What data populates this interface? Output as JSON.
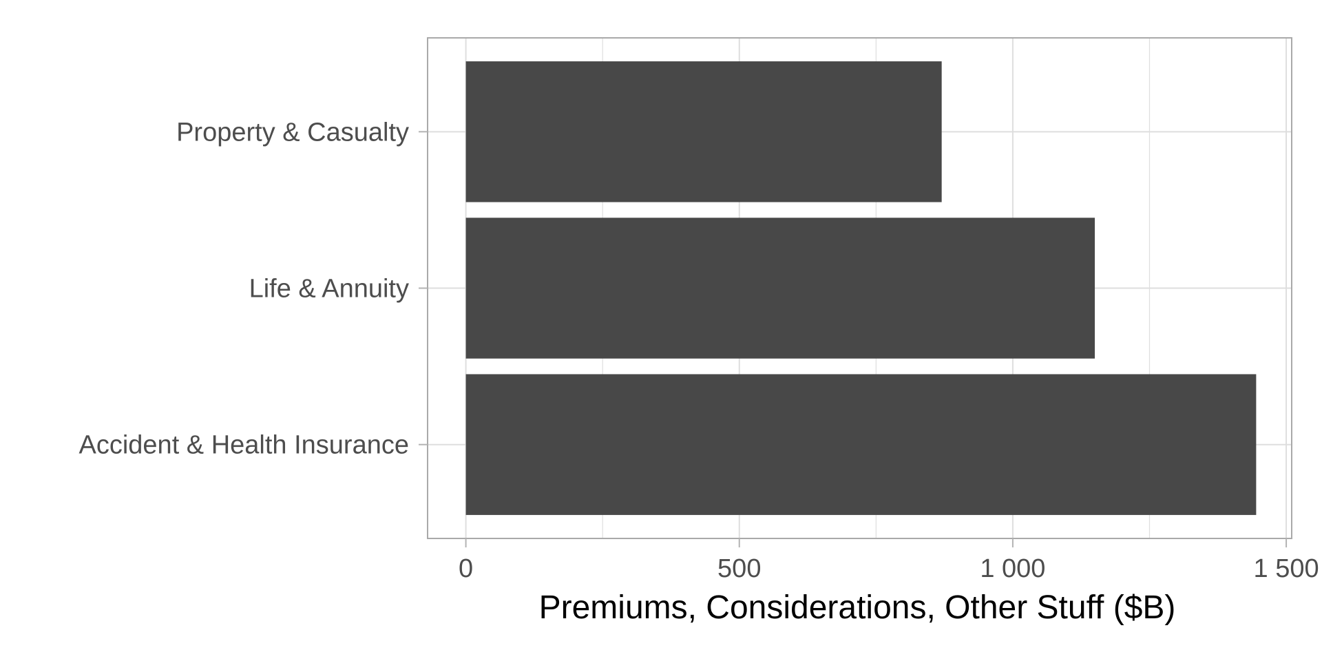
{
  "chart_data": {
    "type": "bar",
    "orientation": "horizontal",
    "title": "",
    "xlabel": "Premiums, Considerations, Other Stuff ($B)",
    "ylabel": "",
    "categories": [
      "Accident & Health Insurance",
      "Life & Annuity",
      "Property & Casualty"
    ],
    "values": [
      1445,
      1150,
      870
    ],
    "xlim": [
      -70,
      1510
    ],
    "x_ticks": [
      0,
      500,
      1000,
      1500
    ],
    "x_tick_labels": [
      "0",
      "500",
      "1 000",
      "1 500"
    ],
    "grid": true,
    "colors": {
      "bar": "#484848",
      "grid": "#dedede",
      "panel_border": "#a9a9a9",
      "tick": "#b3b3b3"
    }
  }
}
